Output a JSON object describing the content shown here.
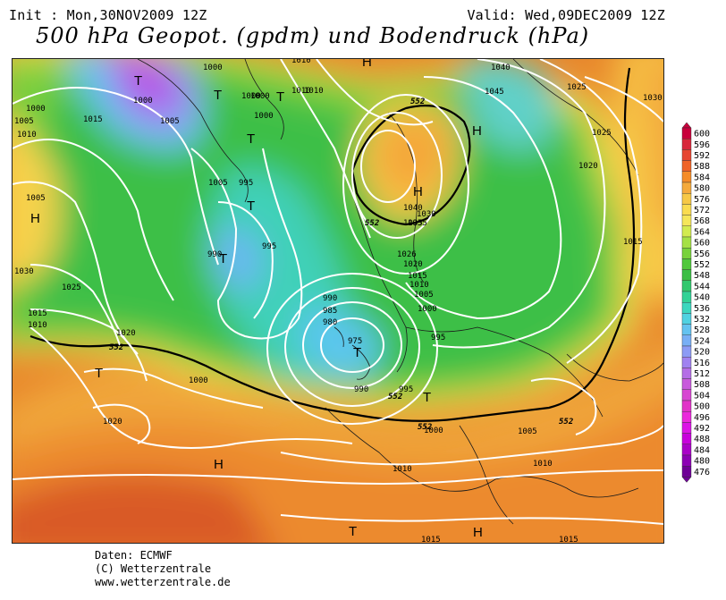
{
  "header": {
    "init": "Init : Mon,30NOV2009 12Z",
    "valid": "Valid: Wed,09DEC2009 12Z",
    "title": "500 hPa Geopot. (gpdm) und Bodendruck (hPa)"
  },
  "legend": {
    "values": [
      600,
      596,
      592,
      588,
      584,
      580,
      576,
      572,
      568,
      564,
      560,
      556,
      552,
      548,
      544,
      540,
      536,
      532,
      528,
      524,
      520,
      516,
      512,
      508,
      504,
      500,
      496,
      492,
      488,
      484,
      480,
      476
    ],
    "colors": [
      "#c8003c",
      "#d8283c",
      "#e64632",
      "#f06428",
      "#f58c28",
      "#f5aa3c",
      "#f7c846",
      "#fadc50",
      "#f5e65a",
      "#d2eb50",
      "#a5e146",
      "#78d23c",
      "#50c83c",
      "#3cbe46",
      "#32c86e",
      "#32d296",
      "#3cd7be",
      "#50d2e1",
      "#64c3f0",
      "#78aff5",
      "#8c9bf5",
      "#a082f0",
      "#b46ee6",
      "#c85adc",
      "#d746d2",
      "#e132c8",
      "#eb28dc",
      "#dc14e6",
      "#c800dc",
      "#aa00c8",
      "#8c00b4",
      "#6e0096"
    ]
  },
  "map": {
    "isobar_labels": [
      "1000",
      "1000",
      "1005",
      "1010",
      "1000",
      "1010",
      "1000",
      "1000",
      "1005",
      "1010",
      "1035",
      "1040",
      "1045",
      "1025",
      "1030",
      "1025",
      "1020",
      "1015",
      "1030",
      "1025",
      "1015",
      "1010",
      "1020",
      "1005",
      "995",
      "995",
      "990",
      "990",
      "985",
      "980",
      "975",
      "1000",
      "995",
      "990",
      "995",
      "1000",
      "1005",
      "1010",
      "1010",
      "1015",
      "1015",
      "1030",
      "1035",
      "1040",
      "1026",
      "1020",
      "1015",
      "1010",
      "1005",
      "1000",
      "1000",
      "1020",
      "1015",
      "1005",
      "1010"
    ],
    "pressure_centres": [
      "T",
      "T",
      "T",
      "T",
      "T",
      "T",
      "T",
      "T",
      "T",
      "T",
      "H",
      "H",
      "H",
      "H",
      "H",
      "H"
    ],
    "contour_labels": [
      "552",
      "552",
      "552",
      "552",
      "552",
      "552"
    ]
  },
  "credits": {
    "line1": "Daten: ECMWF",
    "line2": "(C) Wetterzentrale",
    "line3": "www.wetterzentrale.de"
  }
}
